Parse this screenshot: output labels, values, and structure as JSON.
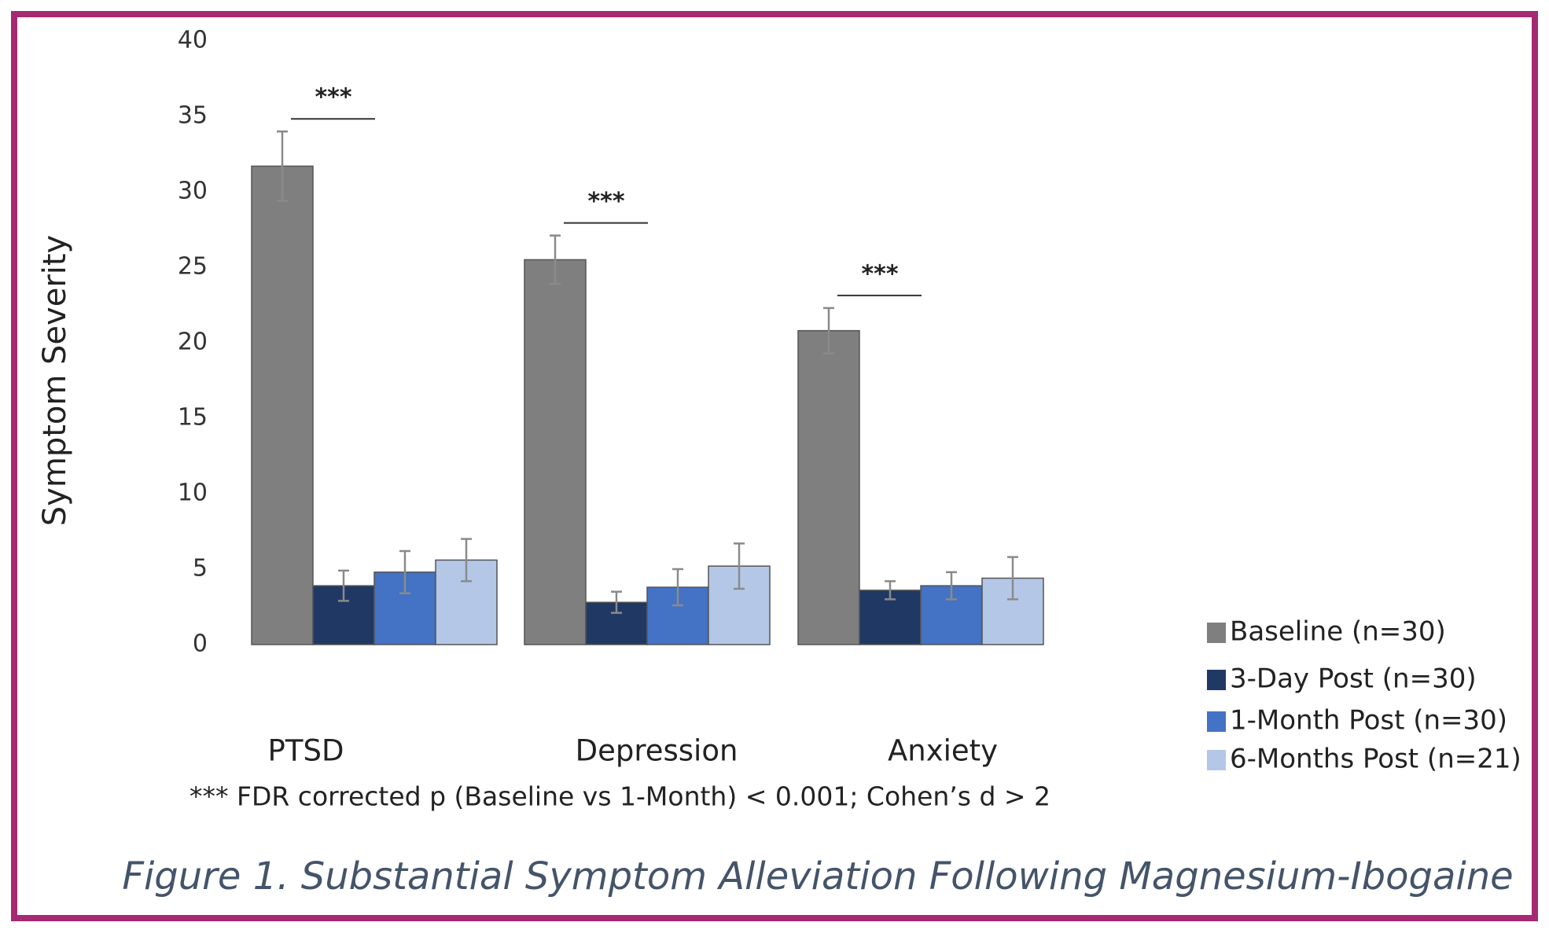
{
  "chart_data": {
    "type": "bar",
    "title": "Figure 1. Substantial Symptom Alleviation Following Magnesium-Ibogaine",
    "y_label": "Symptom Severity",
    "footnote": "*** FDR corrected p (Baseline vs 1-Month) < 0.001; Cohen’s d > 2",
    "categories": [
      "PTSD",
      "Depression",
      "Anxiety"
    ],
    "annotations": [
      "***",
      "***",
      "***"
    ],
    "series": [
      {
        "name": "Baseline (n=30)",
        "color": "#7f7f7f",
        "values": [
          31.7,
          25.5,
          20.8
        ],
        "errors": [
          2.3,
          1.6,
          1.5
        ]
      },
      {
        "name": "3-Day Post (n=30)",
        "color": "#203864",
        "values": [
          3.9,
          2.8,
          3.6
        ],
        "errors": [
          1.0,
          0.7,
          0.6
        ]
      },
      {
        "name": "1-Month Post (n=30)",
        "color": "#4472c4",
        "values": [
          4.8,
          3.8,
          3.9
        ],
        "errors": [
          1.4,
          1.2,
          0.9
        ]
      },
      {
        "name": "6-Months Post (n=21)",
        "color": "#b4c7e7",
        "values": [
          5.6,
          5.2,
          4.4
        ],
        "errors": [
          1.4,
          1.5,
          1.4
        ]
      }
    ],
    "ylim": [
      0,
      40
    ],
    "yticks": [
      0,
      5,
      10,
      15,
      20,
      25,
      30,
      35,
      40
    ],
    "grid": false,
    "legend": "lower right"
  }
}
